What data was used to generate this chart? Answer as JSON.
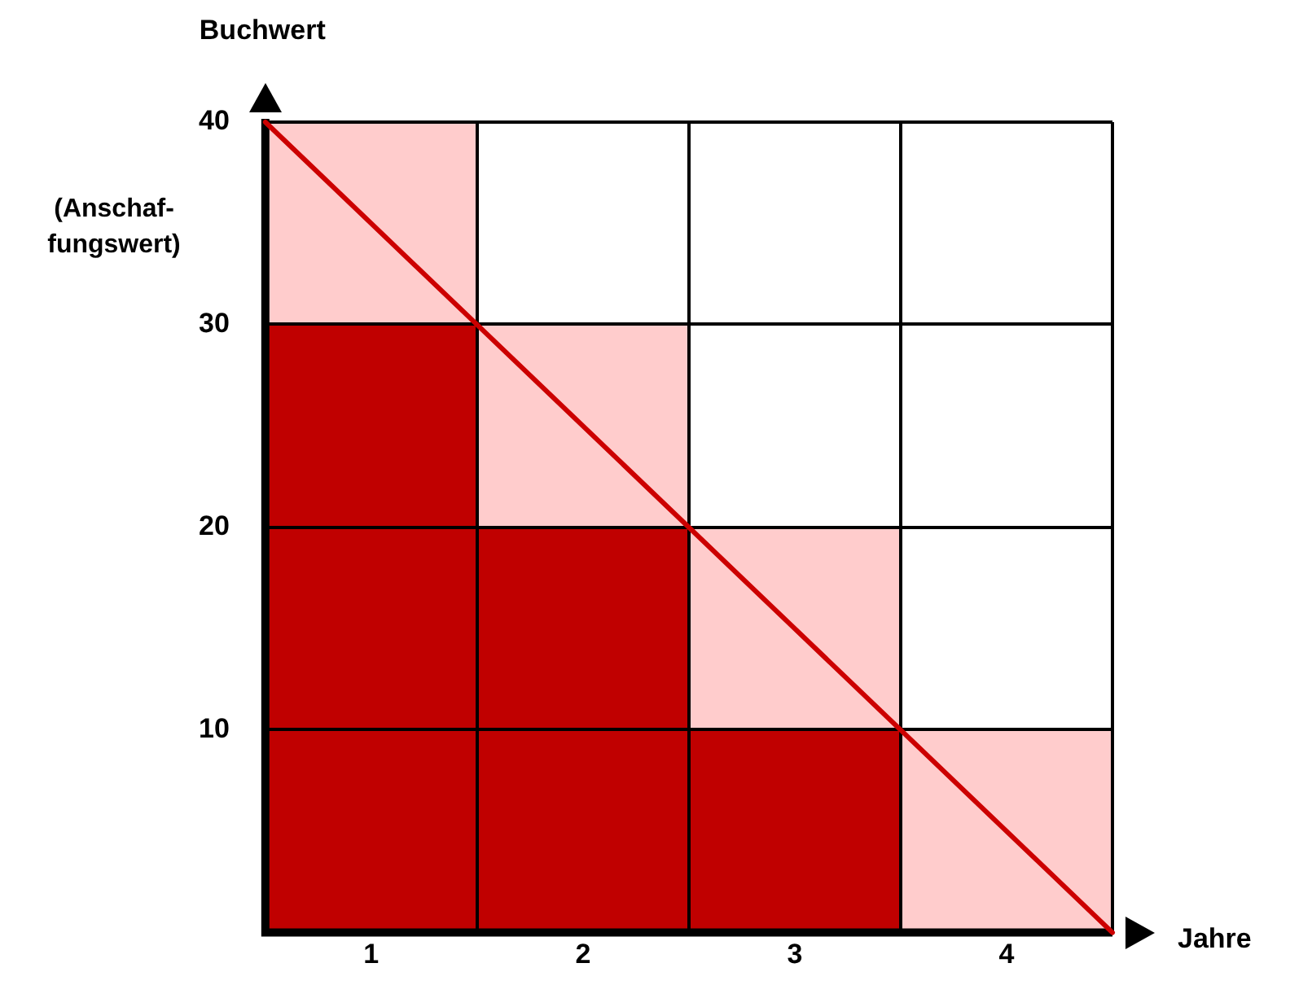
{
  "chart_data": {
    "type": "bar",
    "xlabel": "Jahre",
    "ylabel": "Buchwert",
    "x": [
      0.5,
      1.5,
      2.5,
      3.5
    ],
    "series": [
      {
        "color": "#c00000",
        "values": [
          30,
          20,
          10,
          0
        ]
      },
      {
        "color": "#ffcccc",
        "values": [
          10,
          10,
          10,
          10
        ]
      },
      {
        "type": "line",
        "color": "#cc0000",
        "x": [
          0,
          4
        ],
        "values": [
          40,
          0
        ]
      }
    ],
    "stacked": true,
    "xlim": [
      0,
      4
    ],
    "xticks": [
      {
        "value": 0.5,
        "label": "1"
      },
      {
        "value": 1,
        "label": null
      },
      {
        "value": 1.5,
        "label": "2"
      },
      {
        "value": 2,
        "label": null
      },
      {
        "value": 2.5,
        "label": "3"
      },
      {
        "value": 3,
        "label": null
      },
      {
        "value": 3.5,
        "label": "4"
      },
      {
        "value": 4,
        "label": null
      }
    ],
    "ylim": [
      0,
      40
    ],
    "yticks": [
      10,
      20,
      30,
      40
    ],
    "grid": true,
    "annotations": [
      "(Anschaf-fungswert)"
    ]
  }
}
